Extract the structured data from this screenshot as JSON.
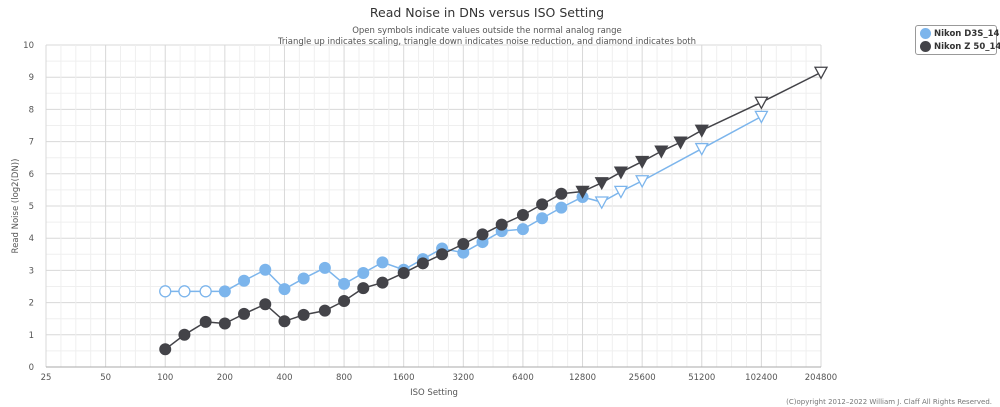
{
  "chart_data": {
    "type": "line",
    "title": "Read Noise in DNs versus ISO Setting",
    "subtitle_lines": [
      "Open symbols indicate values outside the normal analog range",
      "Triangle up indicates scaling, triangle down indicates noise reduction, and diamond indicates both"
    ],
    "xlabel": "ISO Setting",
    "ylabel": "Read Noise (log2(DN))",
    "x_scale": "log2",
    "xlim": [
      25,
      204800
    ],
    "ylim": [
      0,
      10
    ],
    "x_ticks": [
      25,
      50,
      100,
      200,
      400,
      800,
      1600,
      3200,
      6400,
      12800,
      25600,
      51200,
      102400,
      204800
    ],
    "y_ticks": [
      0,
      1,
      2,
      3,
      4,
      5,
      6,
      7,
      8,
      9,
      10
    ],
    "grid": true,
    "legend_position": "top-right",
    "series": [
      {
        "name": "Nikon D3S_14",
        "color": "#7cb5ec",
        "points": [
          {
            "x": 100,
            "y": 2.35,
            "marker": "circle-open"
          },
          {
            "x": 125,
            "y": 2.35,
            "marker": "circle-open"
          },
          {
            "x": 160,
            "y": 2.35,
            "marker": "circle-open"
          },
          {
            "x": 200,
            "y": 2.35,
            "marker": "circle"
          },
          {
            "x": 250,
            "y": 2.68,
            "marker": "circle"
          },
          {
            "x": 320,
            "y": 3.02,
            "marker": "circle"
          },
          {
            "x": 400,
            "y": 2.42,
            "marker": "circle"
          },
          {
            "x": 500,
            "y": 2.75,
            "marker": "circle"
          },
          {
            "x": 640,
            "y": 3.08,
            "marker": "circle"
          },
          {
            "x": 800,
            "y": 2.58,
            "marker": "circle"
          },
          {
            "x": 1000,
            "y": 2.92,
            "marker": "circle"
          },
          {
            "x": 1250,
            "y": 3.25,
            "marker": "circle"
          },
          {
            "x": 1600,
            "y": 3.02,
            "marker": "circle"
          },
          {
            "x": 2000,
            "y": 3.35,
            "marker": "circle"
          },
          {
            "x": 2500,
            "y": 3.68,
            "marker": "circle"
          },
          {
            "x": 3200,
            "y": 3.55,
            "marker": "circle"
          },
          {
            "x": 4000,
            "y": 3.88,
            "marker": "circle"
          },
          {
            "x": 5000,
            "y": 4.22,
            "marker": "circle"
          },
          {
            "x": 6400,
            "y": 4.28,
            "marker": "circle"
          },
          {
            "x": 8000,
            "y": 4.62,
            "marker": "circle"
          },
          {
            "x": 10000,
            "y": 4.95,
            "marker": "circle"
          },
          {
            "x": 12800,
            "y": 5.28,
            "marker": "circle"
          },
          {
            "x": 16000,
            "y": 5.12,
            "marker": "triangle-down-open"
          },
          {
            "x": 20000,
            "y": 5.45,
            "marker": "triangle-down-open"
          },
          {
            "x": 25600,
            "y": 5.78,
            "marker": "triangle-down-open"
          },
          {
            "x": 51200,
            "y": 6.78,
            "marker": "triangle-down-open"
          },
          {
            "x": 102400,
            "y": 7.78,
            "marker": "triangle-down-open"
          }
        ]
      },
      {
        "name": "Nikon Z 50_14",
        "color": "#434348",
        "points": [
          {
            "x": 100,
            "y": 0.55,
            "marker": "circle"
          },
          {
            "x": 125,
            "y": 1.0,
            "marker": "circle"
          },
          {
            "x": 160,
            "y": 1.4,
            "marker": "circle"
          },
          {
            "x": 200,
            "y": 1.35,
            "marker": "circle"
          },
          {
            "x": 250,
            "y": 1.65,
            "marker": "circle"
          },
          {
            "x": 320,
            "y": 1.95,
            "marker": "circle"
          },
          {
            "x": 400,
            "y": 1.42,
            "marker": "circle"
          },
          {
            "x": 500,
            "y": 1.62,
            "marker": "circle"
          },
          {
            "x": 640,
            "y": 1.75,
            "marker": "circle"
          },
          {
            "x": 800,
            "y": 2.05,
            "marker": "circle"
          },
          {
            "x": 1000,
            "y": 2.45,
            "marker": "circle"
          },
          {
            "x": 1250,
            "y": 2.62,
            "marker": "circle"
          },
          {
            "x": 1600,
            "y": 2.92,
            "marker": "circle"
          },
          {
            "x": 2000,
            "y": 3.22,
            "marker": "circle"
          },
          {
            "x": 2500,
            "y": 3.5,
            "marker": "circle"
          },
          {
            "x": 3200,
            "y": 3.82,
            "marker": "circle"
          },
          {
            "x": 4000,
            "y": 4.12,
            "marker": "circle"
          },
          {
            "x": 5000,
            "y": 4.42,
            "marker": "circle"
          },
          {
            "x": 6400,
            "y": 4.72,
            "marker": "circle"
          },
          {
            "x": 8000,
            "y": 5.05,
            "marker": "circle"
          },
          {
            "x": 10000,
            "y": 5.38,
            "marker": "circle"
          },
          {
            "x": 12800,
            "y": 5.45,
            "marker": "triangle-down"
          },
          {
            "x": 16000,
            "y": 5.72,
            "marker": "triangle-down"
          },
          {
            "x": 20000,
            "y": 6.05,
            "marker": "triangle-down"
          },
          {
            "x": 25600,
            "y": 6.38,
            "marker": "triangle-down"
          },
          {
            "x": 32000,
            "y": 6.7,
            "marker": "triangle-down"
          },
          {
            "x": 40000,
            "y": 6.98,
            "marker": "triangle-down"
          },
          {
            "x": 51200,
            "y": 7.35,
            "marker": "triangle-down"
          },
          {
            "x": 102400,
            "y": 8.22,
            "marker": "triangle-down-open"
          },
          {
            "x": 204800,
            "y": 9.15,
            "marker": "triangle-down-open"
          }
        ]
      }
    ]
  },
  "credit": "(C)opyright 2012–2022 William J. Claff All Rights Reserved."
}
